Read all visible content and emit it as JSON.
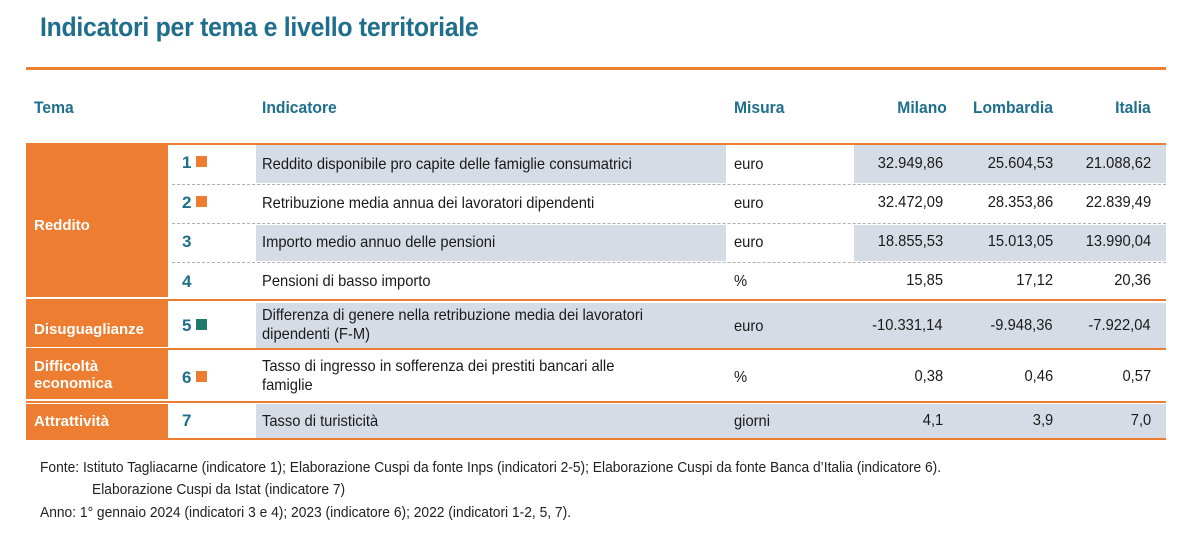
{
  "title": "Indicatori per tema e livello territoriale",
  "headers": {
    "tema": "Tema",
    "indicatore": "Indicatore",
    "misura": "Misura",
    "milano": "Milano",
    "lombardia": "Lombardia",
    "italia": "Italia"
  },
  "themes": {
    "reddito": "Reddito",
    "disuguaglianze": "Disuguaglianze",
    "difficolta_1": "Difficoltà",
    "difficolta_2": "economica",
    "attrattivita": "Attrattività"
  },
  "colors": {
    "accent": "#ed7d31",
    "title": "#1f6e8c",
    "shade": "#d6dce5",
    "green": "#1e7b6a"
  },
  "rows": [
    {
      "n": "1",
      "marker": "orange",
      "line1": "Reddito disponibile pro capite delle famiglie consumatrici",
      "line2": "",
      "misura": "euro",
      "milano": "32.949,86",
      "lombardia": "25.604,53",
      "italia": "21.088,62"
    },
    {
      "n": "2",
      "marker": "orange",
      "line1": "Retribuzione media annua dei lavoratori dipendenti",
      "line2": "",
      "misura": "euro",
      "milano": "32.472,09",
      "lombardia": "28.353,86",
      "italia": "22.839,49"
    },
    {
      "n": "3",
      "marker": "",
      "line1": "Importo medio annuo delle pensioni",
      "line2": "",
      "misura": "euro",
      "milano": "18.855,53",
      "lombardia": "15.013,05",
      "italia": "13.990,04"
    },
    {
      "n": "4",
      "marker": "",
      "line1": "Pensioni di basso importo",
      "line2": "",
      "misura": "%",
      "milano": "15,85",
      "lombardia": "17,12",
      "italia": "20,36"
    },
    {
      "n": "5",
      "marker": "green",
      "line1": "Differenza di genere nella retribuzione media dei lavoratori",
      "line2": "dipendenti (F-M)",
      "misura": "euro",
      "milano": "-10.331,14",
      "lombardia": "-9.948,36",
      "italia": "-7.922,04"
    },
    {
      "n": "6",
      "marker": "orange",
      "line1": "Tasso di ingresso in sofferenza dei prestiti bancari alle",
      "line2": "famiglie",
      "misura": "%",
      "milano": "0,38",
      "lombardia": "0,46",
      "italia": "0,57"
    },
    {
      "n": "7",
      "marker": "",
      "line1": "Tasso di turisticità",
      "line2": "",
      "misura": "giorni",
      "milano": "4,1",
      "lombardia": "3,9",
      "italia": "7,0"
    }
  ],
  "notes": {
    "fonte_1": "Fonte: Istituto Tagliacarne (indicatore 1); Elaborazione Cuspi da fonte Inps (indicatori 2-5); Elaborazione Cuspi da fonte Banca d’Italia (indicatore 6).",
    "fonte_2": "Elaborazione Cuspi da Istat (indicatore 7)",
    "anno": "Anno: 1° gennaio 2024 (indicatori 3 e 4); 2023 (indicatore 6); 2022 (indicatori 1-2, 5, 7)."
  }
}
